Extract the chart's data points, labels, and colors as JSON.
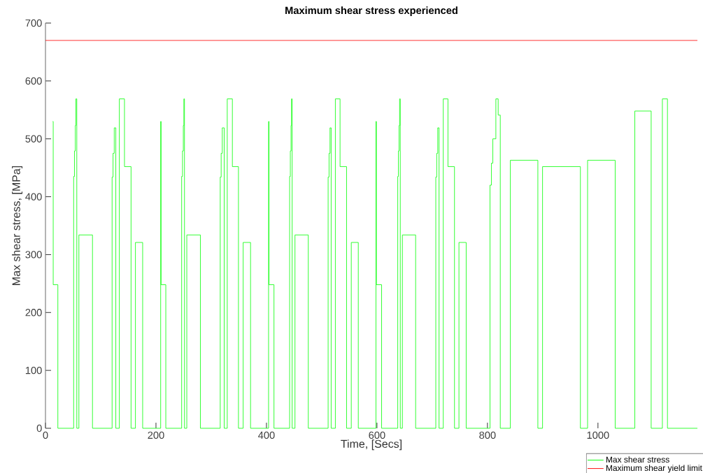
{
  "chart_data": {
    "type": "step",
    "title": "Maximum shear stress experienced",
    "xlabel": "Time, [Secs]",
    "ylabel": "Max shear stress, [MPa]",
    "xlim": [
      0,
      1180
    ],
    "ylim": [
      0,
      700
    ],
    "xticks": [
      0,
      200,
      400,
      600,
      800,
      1000
    ],
    "yticks": [
      0,
      100,
      200,
      300,
      400,
      500,
      600,
      700
    ],
    "legend": "bottom right",
    "grid": false,
    "marker": "none",
    "line_style": "solid",
    "series": [
      {
        "name": "Max shear stress",
        "color": "#00ff00",
        "x": [
          13.2,
          14,
          22.4,
          51,
          52.5,
          54,
          55,
          56.7,
          60.5,
          85.1,
          120.6,
          122.3,
          124.5,
          127.3,
          133.7,
          143,
          154.9,
          162.8,
          175.9,
          208.5,
          209.3,
          217.8,
          246.5,
          248,
          249.5,
          250.5,
          251.6,
          255.8,
          280.4,
          316.3,
          318,
          320,
          323.5,
          329,
          338.3,
          349.3,
          357.8,
          371.2,
          403.8,
          404.6,
          413.6,
          441.9,
          443.2,
          444.5,
          445.3,
          446.5,
          451.6,
          475.7,
          511.6,
          513.3,
          515,
          517.1,
          524.7,
          533.2,
          545,
          553.5,
          566.2,
          598.2,
          599,
          608.4,
          637.6,
          638.8,
          640,
          641,
          642.2,
          646,
          670,
          706.5,
          708.2,
          710,
          712.4,
          720,
          728.5,
          740.3,
          748.4,
          761.5,
          804.6,
          807.2,
          809.7,
          815.2,
          819.4,
          823.2,
          841.4,
          891.2,
          899.7,
          968.2,
          981.2,
          1031.2,
          1066.7,
          1096.3,
          1116.6,
          1125.8,
          1180
        ],
        "values": [
          530,
          248,
          0,
          435,
          479,
          523,
          569,
          0,
          334,
          0,
          434,
          475,
          519,
          0,
          569,
          452,
          0,
          321,
          0,
          530,
          248,
          0,
          435,
          479,
          523,
          569,
          0,
          334,
          0,
          434,
          475,
          519,
          0,
          569,
          452,
          0,
          321,
          0,
          530,
          248,
          0,
          435,
          479,
          523,
          569,
          0,
          334,
          0,
          434,
          475,
          519,
          0,
          569,
          452,
          0,
          321,
          0,
          530,
          248,
          0,
          435,
          479,
          523,
          569,
          0,
          334,
          0,
          434,
          475,
          519,
          0,
          569,
          452,
          0,
          321,
          0,
          420,
          458,
          500,
          569,
          541,
          0,
          463,
          0,
          452,
          0,
          463,
          0,
          548,
          0,
          569,
          0,
          0
        ]
      },
      {
        "name": "Maximum shear yield limit",
        "color": "#ff0000",
        "type": "line",
        "x": [
          0,
          1180
        ],
        "values": [
          670,
          670
        ]
      }
    ]
  }
}
